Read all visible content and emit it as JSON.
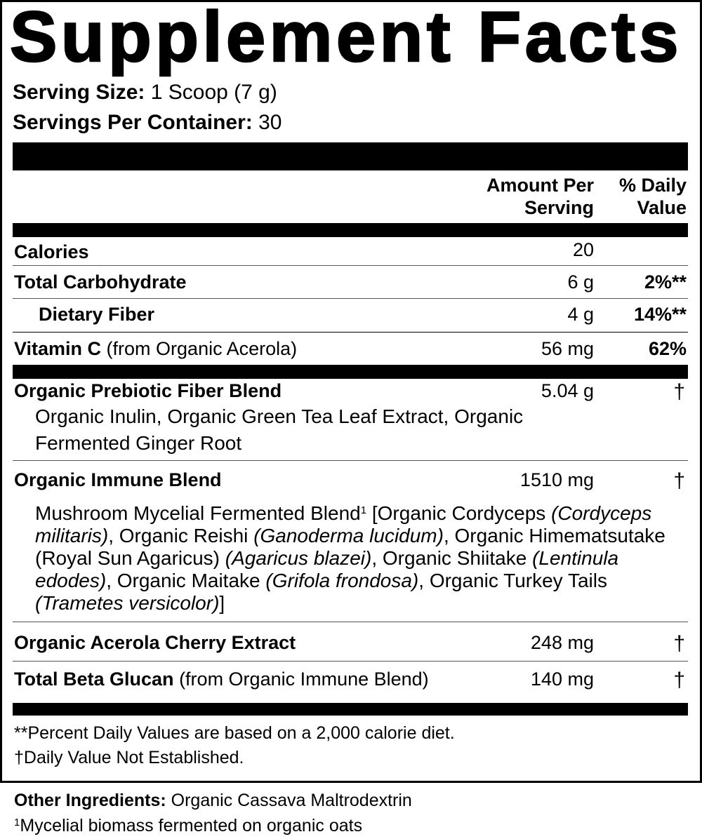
{
  "title": "Supplement Facts",
  "serving_size": {
    "label": "Serving Size:",
    "value": "1 Scoop (7 g)"
  },
  "servings_per_container": {
    "label": "Servings Per Container:",
    "value": "30"
  },
  "header": {
    "amount_line1": "Amount Per",
    "amount_line2": "Serving",
    "dv_line1": "% Daily",
    "dv_line2": "Value"
  },
  "rows": [
    {
      "name": "Calories",
      "amount": "20",
      "dv": ""
    },
    {
      "name": "Total Carbohydrate",
      "amount": "6 g",
      "dv": "2%**"
    },
    {
      "name": "Dietary Fiber",
      "amount": "4 g",
      "dv": "14%**"
    },
    {
      "name": "Vitamin C",
      "note": "(from Organic Acerola)",
      "amount": "56 mg",
      "dv": "62%"
    }
  ],
  "blends": {
    "prebiotic": {
      "name": "Organic Prebiotic Fiber Blend",
      "amount": "5.04 g",
      "dv": "†",
      "line1": "Organic Inulin, Organic Green Tea Leaf Extract, Organic",
      "line2": "Fermented Ginger Root"
    },
    "immune": {
      "name": "Organic Immune Blend",
      "amount": "1510 mg",
      "dv": "†",
      "p1": "Mushroom Mycelial Fermented Blend",
      "sup": "1",
      "p2": " [Organic Cordyceps ",
      "i1": "(Cordyceps militaris)",
      "p3": ", Organic Reishi ",
      "i2": "(Ganoderma lucidum)",
      "p4": ", Organic Himematsutake (Royal Sun Agaricus) ",
      "i3": "(Agaricus blazei)",
      "p5": ", Organic Shiitake ",
      "i4": "(Lentinula edodes)",
      "p6": ", Organic Maitake ",
      "i5": "(Grifola frondosa)",
      "p7": ", Organic Turkey Tails ",
      "i6": "(Trametes versicolor)",
      "p8": "]"
    },
    "acerola": {
      "name": "Organic Acerola Cherry Extract",
      "amount": "248 mg",
      "dv": "†"
    },
    "beta": {
      "name": "Total Beta Glucan",
      "note": "(from Organic Immune Blend)",
      "amount": "140 mg",
      "dv": "†"
    }
  },
  "footnotes": {
    "percent": "**Percent Daily Values are based on a 2,000 calorie diet.",
    "dagger": "†Daily Value Not Established."
  },
  "other_ingredients": {
    "label": "Other Ingredients:",
    "value": "Organic Cassava Maltrodextrin"
  },
  "mycelial_note": {
    "sup": "1",
    "text": "Mycelial biomass fermented on organic oats"
  }
}
